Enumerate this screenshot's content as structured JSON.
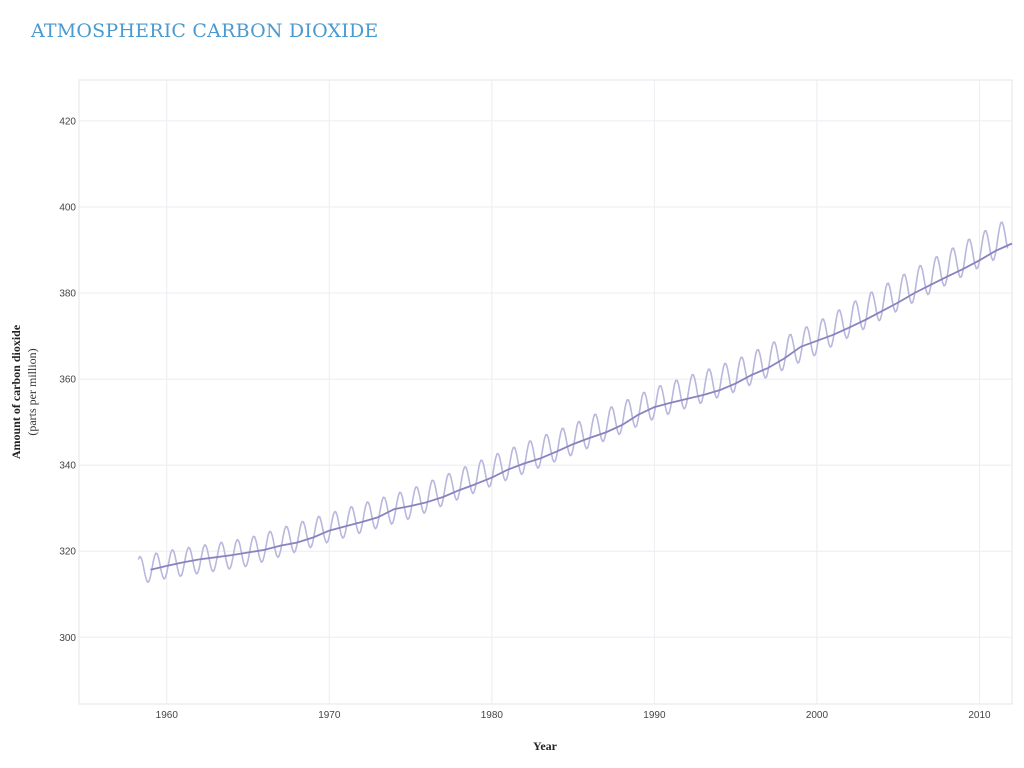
{
  "chart_data": {
    "type": "line",
    "title": "ATMOSPHERIC CARBON DIOXIDE",
    "xlabel": "Year",
    "ylabel": "Amount of carbon dioxide",
    "ylabel_sub": "(parts per million)",
    "xlim": [
      1954.6,
      2012
    ],
    "ylim": [
      284.5,
      429.5
    ],
    "x_ticks": [
      1960,
      1970,
      1980,
      1990,
      2000,
      2010
    ],
    "y_ticks": [
      300,
      320,
      340,
      360,
      380,
      400,
      420
    ],
    "grid": true,
    "colors": {
      "title": "#4a9ad0",
      "seasonal_line": "#b9b7dd",
      "trend_line": "#8a82bf",
      "grid": "#ececf2",
      "frame": "#e4e4ea"
    },
    "series": [
      {
        "style": "seasonal",
        "x_start": 1958.25,
        "x_end": 2011.75,
        "step": 0.0833,
        "seasonal_amplitude": [
          3.2,
          4.0
        ],
        "trend_x": [
          1958,
          1960,
          1965,
          1970,
          1975,
          1980,
          1985,
          1990,
          1995,
          2000,
          2005,
          2010,
          2012
        ],
        "trend_y": [
          315.3,
          316.9,
          319.8,
          325.5,
          331.0,
          338.7,
          346.0,
          354.4,
          360.8,
          369.5,
          379.8,
          389.9,
          393.8
        ]
      },
      {
        "style": "trend",
        "x": [
          1959,
          1960,
          1961,
          1962,
          1963,
          1964,
          1965,
          1966,
          1967,
          1968,
          1969,
          1970,
          1971,
          1972,
          1973,
          1974,
          1975,
          1976,
          1977,
          1978,
          1979,
          1980,
          1981,
          1982,
          1983,
          1984,
          1985,
          1986,
          1987,
          1988,
          1989,
          1990,
          1991,
          1992,
          1993,
          1994,
          1995,
          1996,
          1997,
          1998,
          1999,
          2000,
          2001,
          2002,
          2003,
          2004,
          2005,
          2006,
          2007,
          2008,
          2009,
          2010,
          2011,
          2012
        ],
        "y": [
          315.7,
          316.6,
          317.4,
          318.1,
          318.6,
          319.1,
          319.7,
          320.3,
          321.3,
          322.0,
          323.2,
          324.8,
          325.8,
          326.8,
          327.9,
          329.8,
          330.5,
          331.4,
          332.6,
          334.2,
          335.6,
          337.1,
          339.0,
          340.4,
          341.6,
          343.2,
          344.9,
          346.3,
          347.6,
          349.3,
          351.7,
          353.5,
          354.5,
          355.4,
          356.3,
          357.4,
          359.0,
          361.0,
          362.6,
          364.8,
          367.5,
          368.9,
          370.3,
          372.0,
          373.8,
          375.8,
          377.8,
          380.0,
          381.9,
          383.8,
          385.6,
          387.6,
          389.8,
          391.5
        ]
      }
    ]
  }
}
